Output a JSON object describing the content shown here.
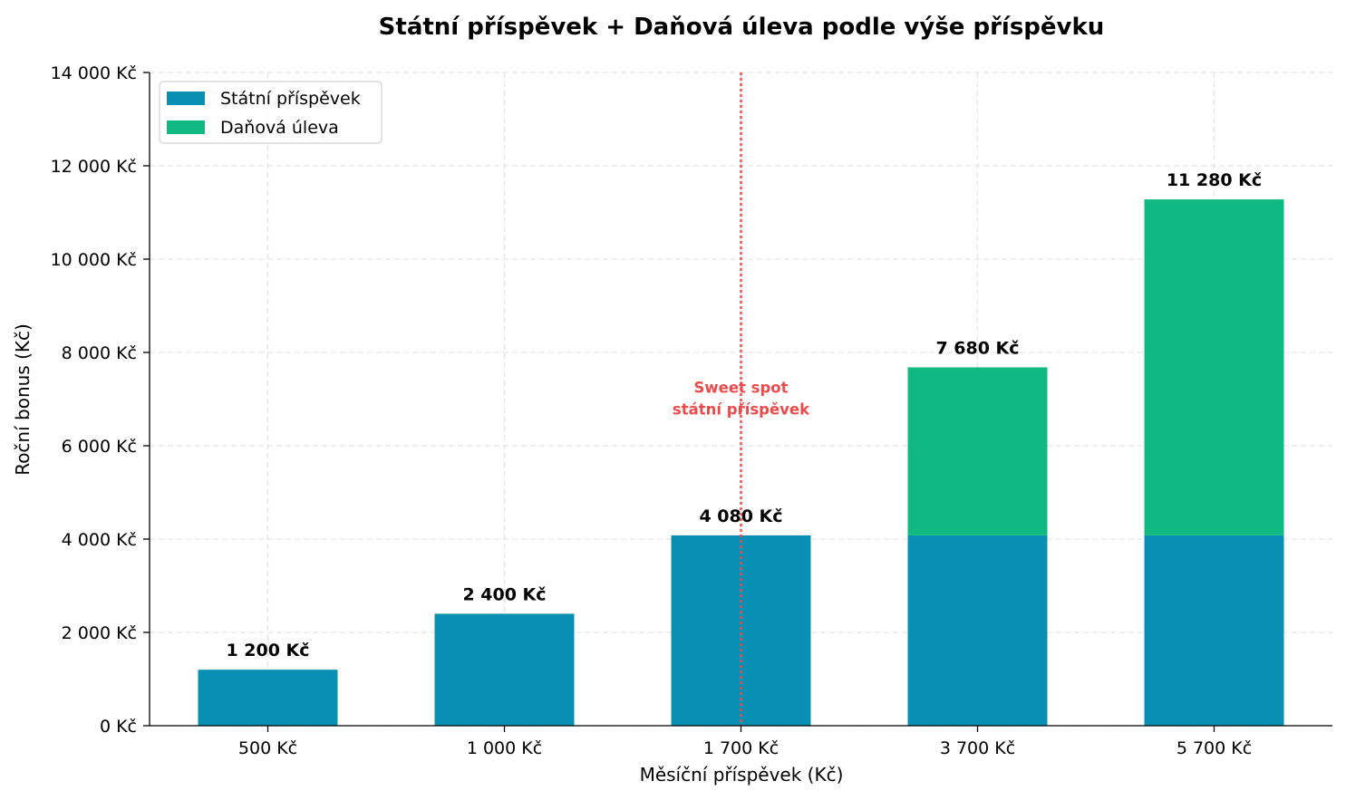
{
  "chart_data": {
    "type": "bar",
    "stacked": true,
    "title": "Státní příspěvek + Daňová úleva podle výše příspěvku",
    "xlabel": "Měsíční příspěvek (Kč)",
    "ylabel": "Roční bonus (Kč)",
    "categories": [
      "500 Kč",
      "1 000 Kč",
      "1 700 Kč",
      "3 700 Kč",
      "5 700 Kč"
    ],
    "series": [
      {
        "name": "Státní příspěvek",
        "values": [
          1200,
          2400,
          4080,
          4080,
          4080
        ],
        "color": "#088fb2"
      },
      {
        "name": "Daňová úleva",
        "values": [
          0,
          0,
          0,
          3600,
          7200
        ],
        "color": "#10b981"
      }
    ],
    "totals_labels": [
      "1 200 Kč",
      "2 400 Kč",
      "4 080 Kč",
      "7 680 Kč",
      "11 280 Kč"
    ],
    "ylim": [
      0,
      14000
    ],
    "yticks": [
      {
        "value": 0,
        "label": "0 Kč"
      },
      {
        "value": 2000,
        "label": "2 000 Kč"
      },
      {
        "value": 4000,
        "label": "4 000 Kč"
      },
      {
        "value": 6000,
        "label": "6 000 Kč"
      },
      {
        "value": 8000,
        "label": "8 000 Kč"
      },
      {
        "value": 10000,
        "label": "10 000 Kč"
      },
      {
        "value": 12000,
        "label": "12 000 Kč"
      },
      {
        "value": 14000,
        "label": "14 000 Kč"
      }
    ],
    "grid": true,
    "legend_position": "top-left",
    "annotation": {
      "category_index": 2,
      "lines": [
        "Sweet spot",
        "státní příspěvek"
      ],
      "color": "#e84c4c",
      "text_value": 6900
    }
  }
}
